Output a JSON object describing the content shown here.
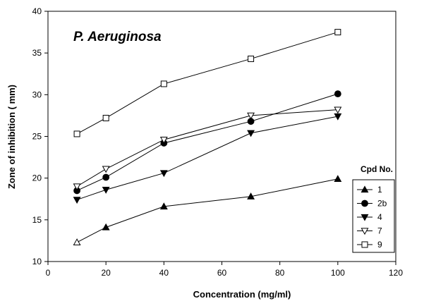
{
  "chart_data": {
    "type": "line",
    "title": "P. Aeruginosa",
    "xlabel": "Concentration (mg/ml)",
    "ylabel": "Zone of inhibition ( mm)",
    "xlim": [
      0,
      120
    ],
    "ylim": [
      10,
      40
    ],
    "x_ticks": [
      0,
      20,
      40,
      60,
      80,
      100,
      120
    ],
    "y_ticks": [
      10,
      15,
      20,
      25,
      30,
      35,
      40
    ],
    "grid": false,
    "legend_title": "Cpd No.",
    "legend_position": "bottom-right",
    "x": [
      10,
      20,
      40,
      70,
      100
    ],
    "series": [
      {
        "name": "1",
        "marker": "triangle-up-filled",
        "values": [
          12.3,
          14.1,
          16.6,
          17.8,
          19.9
        ]
      },
      {
        "name": "2b",
        "marker": "circle-filled",
        "values": [
          18.5,
          20.1,
          24.2,
          26.8,
          30.1
        ]
      },
      {
        "name": "4",
        "marker": "triangle-down-filled",
        "values": [
          17.4,
          18.6,
          20.6,
          25.4,
          27.4
        ]
      },
      {
        "name": "7",
        "marker": "triangle-down-open",
        "values": [
          19.0,
          21.1,
          24.6,
          27.5,
          28.2
        ]
      },
      {
        "name": "9",
        "marker": "square-open",
        "values": [
          25.3,
          27.2,
          31.3,
          34.3,
          37.5
        ]
      }
    ]
  }
}
